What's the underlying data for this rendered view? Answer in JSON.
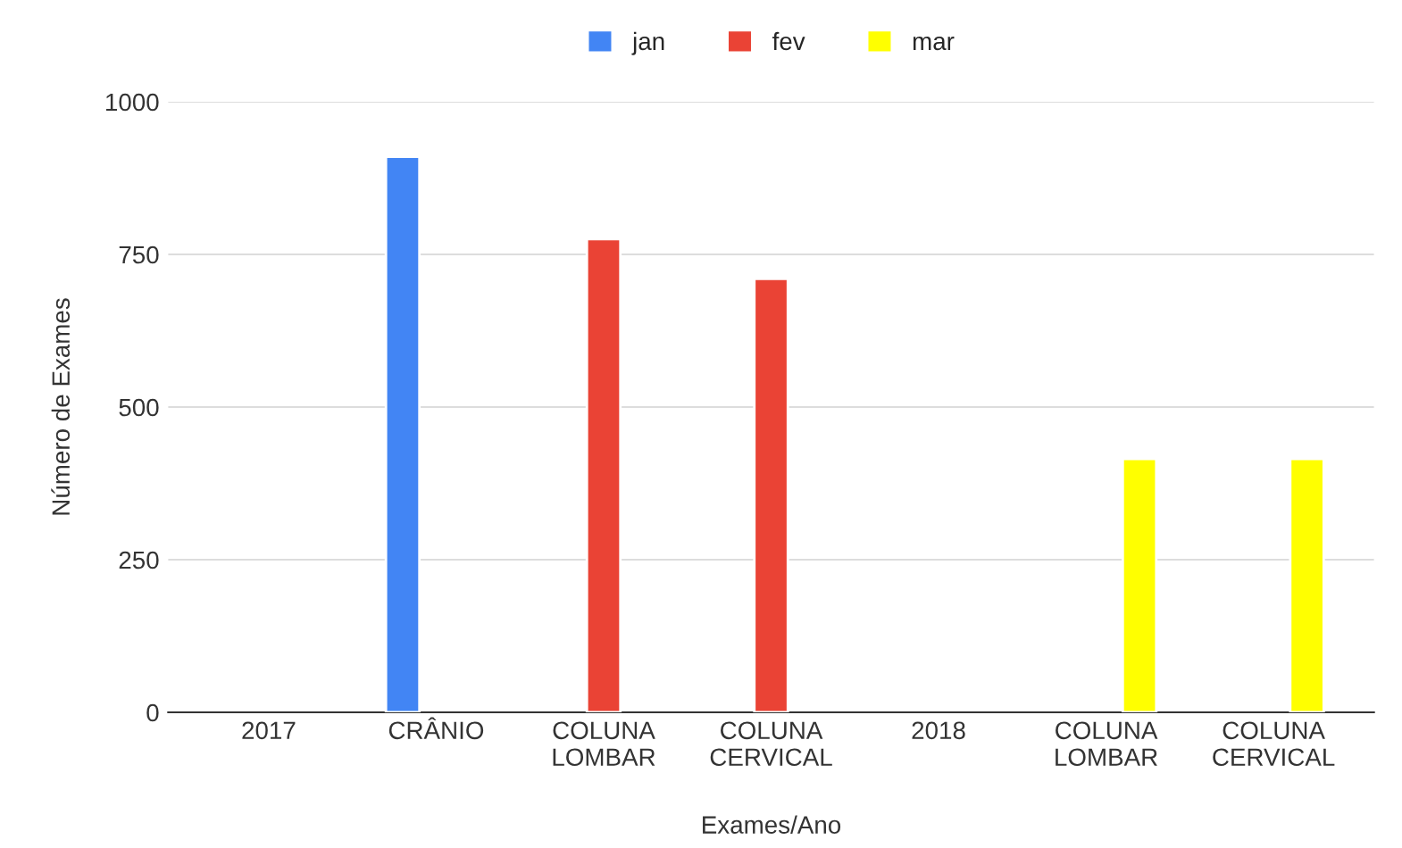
{
  "chart_data": {
    "type": "bar",
    "xlabel": "Exames/Ano",
    "ylabel": "Número de Exames",
    "categories": [
      "2017",
      "CRÂNIO",
      "COLUNA\nLOMBAR",
      "COLUNA\nCERVICAL",
      "2018",
      "COLUNA\nLOMBAR",
      "COLUNA\nCERVICAL"
    ],
    "series": [
      {
        "name": "jan",
        "color": "#4285f4",
        "values": [
          null,
          910,
          null,
          null,
          null,
          null,
          null
        ]
      },
      {
        "name": "fev",
        "color": "#ea4335",
        "values": [
          null,
          null,
          775,
          710,
          null,
          null,
          null
        ]
      },
      {
        "name": "mar",
        "color": "#ffff00",
        "values": [
          null,
          null,
          null,
          null,
          null,
          415,
          415
        ]
      }
    ],
    "ylim": [
      0,
      1000
    ],
    "yticks": [
      0,
      250,
      500,
      750,
      1000
    ],
    "grid": "y",
    "legend": "top"
  }
}
